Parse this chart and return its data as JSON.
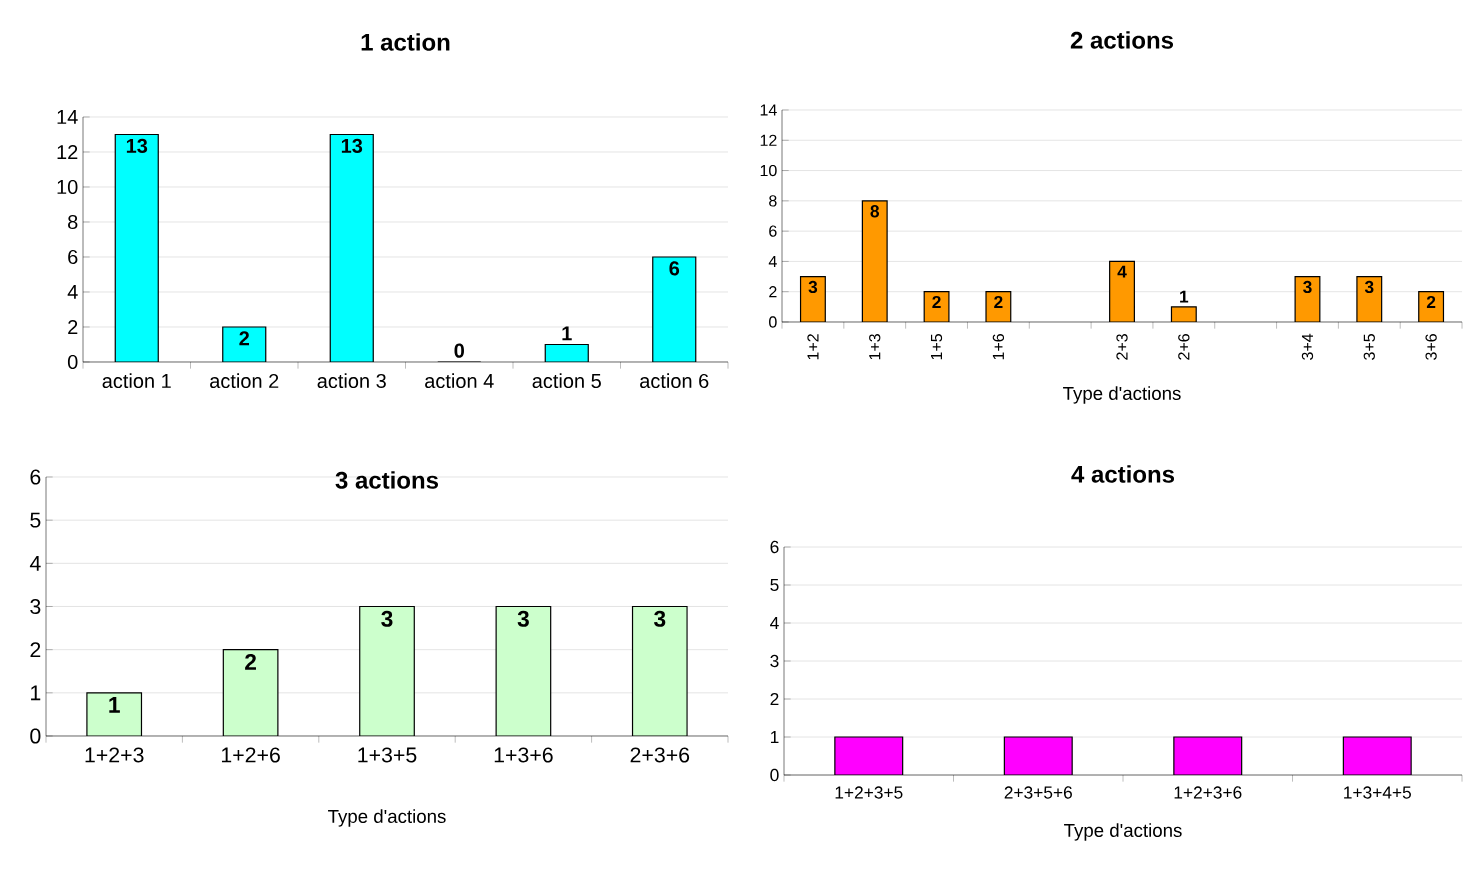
{
  "chart_data": [
    {
      "type": "bar",
      "title": "1 action",
      "categories": [
        "action 1",
        "action 2",
        "action 3",
        "action 4",
        "action 5",
        "action 6"
      ],
      "values": [
        13,
        2,
        13,
        0,
        1,
        6
      ],
      "color": "#00ffff",
      "ylim": [
        0,
        14
      ],
      "yticks": [
        0,
        2,
        4,
        6,
        8,
        10,
        12,
        14
      ],
      "grid": "y",
      "data_labels": true
    },
    {
      "type": "bar",
      "title": "2 actions",
      "xlabel": "Type d'actions",
      "categories": [
        "1+2",
        "1+3",
        "1+5",
        "1+6",
        null,
        "2+3",
        "2+6",
        null,
        "3+4",
        "3+5",
        "3+6"
      ],
      "values": [
        3,
        8,
        2,
        2,
        null,
        4,
        1,
        null,
        3,
        3,
        2
      ],
      "color": "#ff9900",
      "ylim": [
        0,
        14
      ],
      "yticks": [
        0,
        2,
        4,
        6,
        8,
        10,
        12,
        14
      ],
      "grid": "y",
      "data_labels": true
    },
    {
      "type": "bar",
      "title": "3 actions",
      "xlabel": "Type d'actions",
      "categories": [
        "1+2+3",
        "1+2+6",
        "1+3+5",
        "1+3+6",
        "2+3+6"
      ],
      "values": [
        1,
        2,
        3,
        3,
        3
      ],
      "color": "#ccffcc",
      "ylim": [
        0,
        6
      ],
      "yticks": [
        0,
        1,
        2,
        3,
        4,
        5,
        6
      ],
      "grid": "y",
      "data_labels": true
    },
    {
      "type": "bar",
      "title": "4 actions",
      "xlabel": "Type d'actions",
      "categories": [
        "1+2+3+5",
        "2+3+5+6",
        "1+2+3+6",
        "1+3+4+5"
      ],
      "values": [
        1,
        1,
        1,
        1
      ],
      "color": "#ff00ff",
      "ylim": [
        0,
        6
      ],
      "yticks": [
        0,
        1,
        2,
        3,
        4,
        5,
        6
      ],
      "grid": "y"
    }
  ]
}
